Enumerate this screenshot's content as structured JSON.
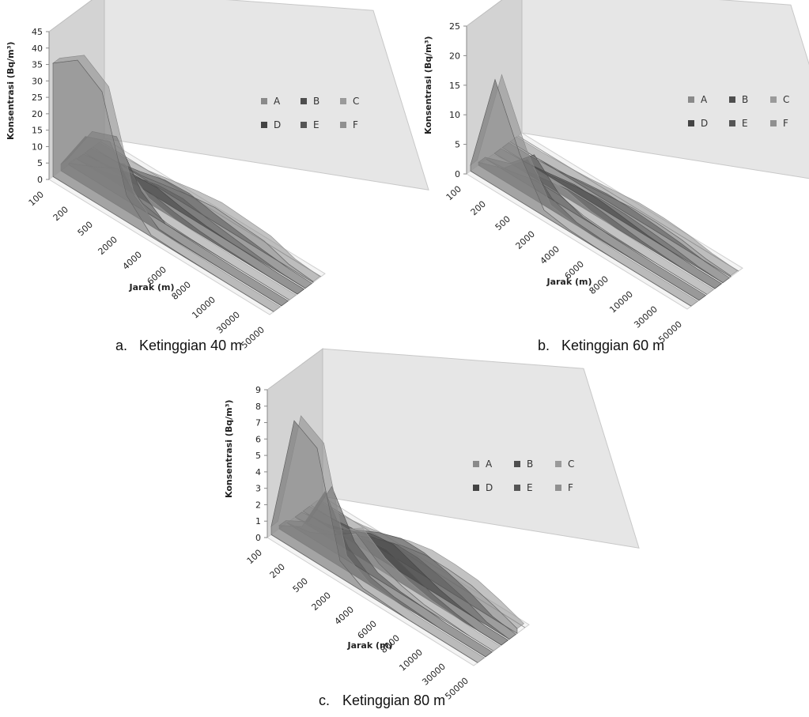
{
  "chart_data": [
    {
      "type": "area",
      "subtype": "3d-area",
      "categories": [
        "100",
        "200",
        "500",
        "2000",
        "4000",
        "6000",
        "8000",
        "10000",
        "30000",
        "50000"
      ],
      "xlabel": "Jarak (m)",
      "ylabel": "Konsentrasi (Bq/m³)",
      "ylim": [
        0,
        45
      ],
      "yticks": [
        0,
        5,
        10,
        15,
        20,
        25,
        30,
        35,
        40,
        45
      ],
      "legend_position": "right, 3 columns x 2 rows",
      "caption": {
        "letter": "a.",
        "text": "Ketinggian 40 m"
      },
      "series": [
        {
          "name": "A",
          "color": "#8a8a8a",
          "values": [
            34.5,
            40,
            35,
            8,
            0.5,
            0.2,
            0.1,
            0,
            0,
            0
          ]
        },
        {
          "name": "B",
          "color": "#4e4e4e",
          "values": [
            2,
            15,
            18,
            6,
            0.5,
            0.2,
            0.1,
            0,
            0,
            0
          ]
        },
        {
          "name": "C",
          "color": "#9a9a9a",
          "values": [
            0.5,
            4,
            8,
            2,
            0.5,
            0.2,
            0.1,
            0,
            0,
            0
          ]
        },
        {
          "name": "D",
          "color": "#444444",
          "values": [
            0,
            1,
            3,
            3.5,
            2,
            1,
            0.5,
            0.3,
            0,
            0
          ]
        },
        {
          "name": "E",
          "color": "#555555",
          "values": [
            0,
            0.5,
            2,
            4,
            4.5,
            3,
            2,
            1,
            0.2,
            0
          ]
        },
        {
          "name": "F",
          "color": "#909090",
          "values": [
            0,
            0,
            0.5,
            2,
            3.5,
            4.5,
            4,
            3.5,
            1,
            0.3
          ]
        }
      ]
    },
    {
      "type": "area",
      "subtype": "3d-area",
      "categories": [
        "100",
        "200",
        "500",
        "2000",
        "4000",
        "6000",
        "8000",
        "10000",
        "30000",
        "50000"
      ],
      "xlabel": "Jarak (m)",
      "ylabel": "Konsentrasi (Bq/m³)",
      "ylim": [
        0,
        25
      ],
      "yticks": [
        0,
        5,
        10,
        15,
        20,
        25
      ],
      "legend_position": "right, 3 columns x 2 rows",
      "caption": {
        "letter": "b.",
        "text": "Ketinggian 60 m"
      },
      "series": [
        {
          "name": "A",
          "color": "#8a8a8a",
          "values": [
            1,
            18,
            8,
            1,
            0.3,
            0.1,
            0,
            0,
            0,
            0
          ]
        },
        {
          "name": "B",
          "color": "#4e4e4e",
          "values": [
            0.5,
            2,
            6,
            2,
            0.5,
            0.2,
            0.1,
            0,
            0,
            0
          ]
        },
        {
          "name": "C",
          "color": "#9a9a9a",
          "values": [
            0,
            0.5,
            1.5,
            1.5,
            0.5,
            0.2,
            0.1,
            0,
            0,
            0
          ]
        },
        {
          "name": "D",
          "color": "#444444",
          "values": [
            0,
            0.2,
            0.8,
            1.5,
            1.5,
            1,
            0.5,
            0.2,
            0,
            0
          ]
        },
        {
          "name": "E",
          "color": "#555555",
          "values": [
            0,
            0,
            0.3,
            1,
            1.5,
            1.5,
            1.2,
            0.8,
            0.2,
            0
          ]
        },
        {
          "name": "F",
          "color": "#909090",
          "values": [
            0,
            0,
            0.2,
            0.5,
            1,
            1.5,
            1.5,
            1.2,
            0.5,
            0.2
          ]
        }
      ]
    },
    {
      "type": "area",
      "subtype": "3d-area",
      "categories": [
        "100",
        "200",
        "500",
        "2000",
        "4000",
        "6000",
        "8000",
        "10000",
        "30000",
        "50000"
      ],
      "xlabel": "Jarak (m)",
      "ylabel": "Konsentrasi (Bq/m³)",
      "ylim": [
        0,
        9
      ],
      "yticks": [
        0,
        1,
        2,
        3,
        4,
        5,
        6,
        7,
        8,
        9
      ],
      "legend_position": "right, 3 columns x 2 rows",
      "caption": {
        "letter": "c.",
        "text": "Ketinggian 80 m"
      },
      "series": [
        {
          "name": "A",
          "color": "#8a8a8a",
          "values": [
            0.5,
            7.8,
            7,
            1,
            0.2,
            0.1,
            0,
            0,
            0,
            0
          ]
        },
        {
          "name": "B",
          "color": "#4e4e4e",
          "values": [
            0.2,
            1,
            4,
            1.5,
            0.5,
            0.2,
            0.1,
            0,
            0,
            0
          ]
        },
        {
          "name": "C",
          "color": "#9a9a9a",
          "values": [
            0,
            0.3,
            1,
            2,
            1,
            0.5,
            0.2,
            0.1,
            0,
            0
          ]
        },
        {
          "name": "D",
          "color": "#444444",
          "values": [
            0,
            0.2,
            0.6,
            1.3,
            1.5,
            1,
            0.5,
            0.2,
            0,
            0
          ]
        },
        {
          "name": "E",
          "color": "#555555",
          "values": [
            0,
            0.1,
            0.3,
            1,
            1.5,
            1.5,
            1.2,
            0.8,
            0.2,
            0
          ]
        },
        {
          "name": "F",
          "color": "#909090",
          "values": [
            0,
            0,
            0.2,
            0.5,
            1,
            1.3,
            1.3,
            1.2,
            0.8,
            0.3
          ]
        }
      ]
    }
  ]
}
